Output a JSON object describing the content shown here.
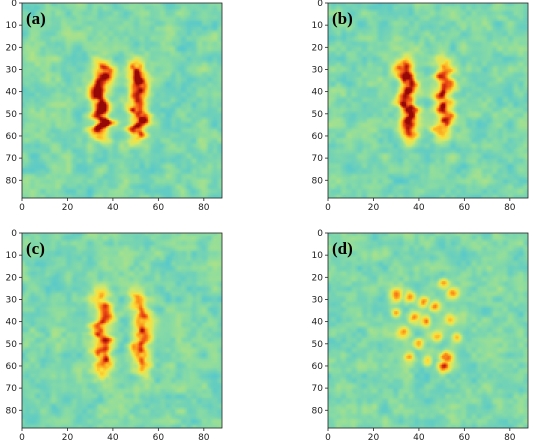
{
  "chart_data": [
    {
      "type": "heatmap",
      "panel_label": "(a)",
      "xlim": [
        0,
        88
      ],
      "ylim": [
        88,
        0
      ],
      "x_ticks": [
        "0",
        "20",
        "40",
        "60",
        "80"
      ],
      "y_ticks": [
        "0",
        "10",
        "20",
        "30",
        "40",
        "50",
        "60",
        "70",
        "80"
      ],
      "colormap": "jet",
      "features": [
        {
          "shape": "vertical-band",
          "x": 35,
          "y_from": 27,
          "y_to": 61,
          "intensity": 1.0
        },
        {
          "shape": "vertical-band",
          "x": 51,
          "y_from": 27,
          "y_to": 61,
          "intensity": 0.97
        }
      ]
    },
    {
      "type": "heatmap",
      "panel_label": "(b)",
      "xlim": [
        0,
        88
      ],
      "ylim": [
        88,
        0
      ],
      "x_ticks": [
        "0",
        "20",
        "40",
        "60",
        "80"
      ],
      "y_ticks": [
        "0",
        "10",
        "20",
        "30",
        "40",
        "50",
        "60",
        "70",
        "80"
      ],
      "colormap": "jet",
      "features": [
        {
          "shape": "vertical-band",
          "x": 35,
          "y_from": 27,
          "y_to": 61,
          "intensity": 1.0
        },
        {
          "shape": "vertical-band",
          "x": 51,
          "y_from": 27,
          "y_to": 60,
          "intensity": 0.85
        }
      ]
    },
    {
      "type": "heatmap",
      "panel_label": "(c)",
      "xlim": [
        0,
        88
      ],
      "ylim": [
        88,
        0
      ],
      "x_ticks": [
        "0",
        "20",
        "40",
        "60",
        "80"
      ],
      "y_ticks": [
        "0",
        "10",
        "20",
        "30",
        "40",
        "50",
        "60",
        "70",
        "80"
      ],
      "colormap": "jet",
      "features": [
        {
          "shape": "vertical-band",
          "x": 35,
          "y_from": 27,
          "y_to": 64,
          "intensity": 0.8
        },
        {
          "shape": "vertical-band",
          "x": 52,
          "y_from": 28,
          "y_to": 62,
          "intensity": 0.72
        }
      ]
    },
    {
      "type": "heatmap",
      "panel_label": "(d)",
      "xlim": [
        0,
        88
      ],
      "ylim": [
        88,
        0
      ],
      "x_ticks": [
        "0",
        "20",
        "40",
        "60",
        "80"
      ],
      "y_ticks": [
        "0",
        "10",
        "20",
        "30",
        "40",
        "50",
        "60",
        "70",
        "80"
      ],
      "colormap": "jet",
      "features": [
        {
          "shape": "scattered-blobs",
          "x": 42,
          "y_from": 22,
          "y_to": 62,
          "intensity": 0.7
        }
      ]
    }
  ]
}
